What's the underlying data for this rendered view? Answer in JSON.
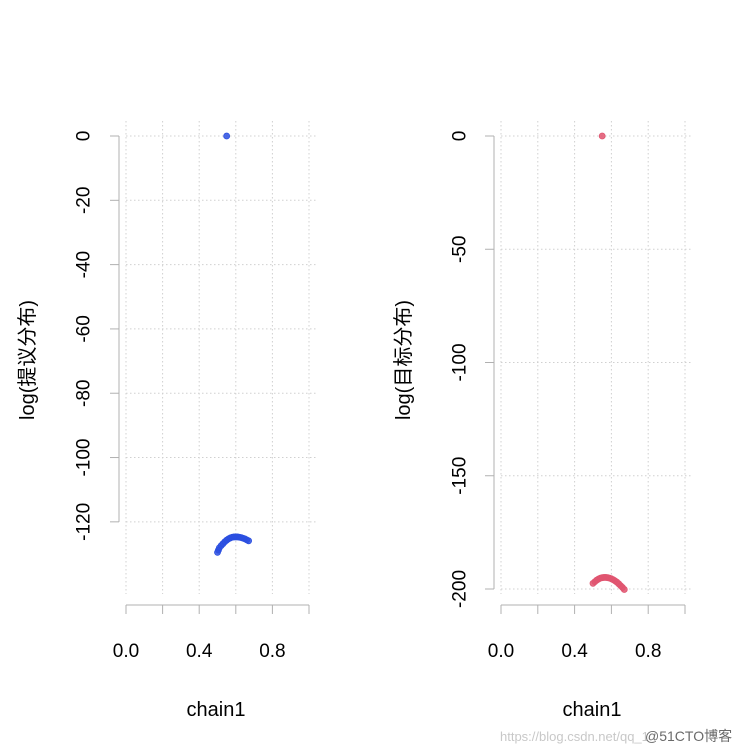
{
  "chart_data": [
    {
      "type": "scatter",
      "xlabel": "chain1",
      "ylabel": "log(提议分布)",
      "xlim": [
        0,
        1
      ],
      "ylim": [
        -130,
        0
      ],
      "x_ticks": [
        0,
        0.2,
        0.4,
        0.6,
        0.8,
        1.0
      ],
      "x_tick_labels": [
        "0.0",
        "0.4",
        "0.8"
      ],
      "x_tick_label_values": [
        0,
        0.4,
        0.8
      ],
      "y_ticks": [
        0,
        -20,
        -40,
        -60,
        -80,
        -100,
        -120
      ],
      "y_tick_labels": [
        "0",
        "-20",
        "-40",
        "-60",
        "-80",
        "-100",
        "-120"
      ],
      "grid": true,
      "color": "#2b4fe0",
      "x": [
        0.55,
        0.5,
        0.505,
        0.51,
        0.52,
        0.53,
        0.54,
        0.55,
        0.56,
        0.57,
        0.58,
        0.59,
        0.6,
        0.61,
        0.62,
        0.63,
        0.64,
        0.65,
        0.66,
        0.67
      ],
      "y": [
        0,
        -129.5,
        -128.8,
        -128.1,
        -127.4,
        -126.8,
        -126.2,
        -125.7,
        -125.3,
        -125.0,
        -124.8,
        -124.7,
        -124.7,
        -124.7,
        -124.8,
        -124.9,
        -125.1,
        -125.3,
        -125.6,
        -125.9
      ]
    },
    {
      "type": "scatter",
      "xlabel": "chain1",
      "ylabel": "log(目标分布)",
      "xlim": [
        0,
        1
      ],
      "ylim": [
        -200,
        0
      ],
      "x_ticks": [
        0,
        0.2,
        0.4,
        0.6,
        0.8,
        1.0
      ],
      "x_tick_labels": [
        "0.0",
        "0.4",
        "0.8"
      ],
      "x_tick_label_values": [
        0,
        0.4,
        0.8
      ],
      "y_ticks": [
        0,
        -50,
        -100,
        -150,
        -200
      ],
      "y_tick_labels": [
        "0",
        "-50",
        "-100",
        "-150",
        "-200"
      ],
      "grid": true,
      "color": "#e05570",
      "x": [
        0.55,
        0.5,
        0.51,
        0.52,
        0.53,
        0.54,
        0.55,
        0.56,
        0.57,
        0.58,
        0.59,
        0.6,
        0.61,
        0.62,
        0.63,
        0.64,
        0.65,
        0.66,
        0.67
      ],
      "y": [
        0,
        -197.5,
        -196.8,
        -196.1,
        -195.6,
        -195.2,
        -195.0,
        -194.9,
        -194.9,
        -195.0,
        -195.2,
        -195.5,
        -195.9,
        -196.4,
        -197.0,
        -197.7,
        -198.5,
        -199.3,
        -200.2
      ]
    }
  ],
  "watermark": {
    "light": "https://blog.csdn.net/qq_1",
    "strong": "@51CTO博客"
  }
}
